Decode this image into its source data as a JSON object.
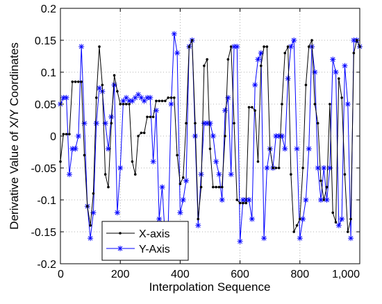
{
  "chart_data": {
    "type": "line",
    "xlabel": "Interpolation Sequence",
    "ylabel": "Derivative Value of X/Y Coordinates",
    "xlim": [
      0,
      1000
    ],
    "ylim": [
      -0.2,
      0.2
    ],
    "x_ticks": [
      0,
      200,
      400,
      600,
      800,
      1000
    ],
    "x_tick_labels": [
      "0",
      "200",
      "400",
      "600",
      "800",
      "1,000"
    ],
    "y_ticks": [
      -0.2,
      -0.15,
      -0.1,
      -0.05,
      0,
      0.05,
      0.1,
      0.15,
      0.2
    ],
    "y_tick_labels": [
      "-0.2",
      "-0.15",
      "-0.1",
      "-0.05",
      "0",
      "0.05",
      "0.1",
      "0.15",
      "0.2"
    ],
    "grid": true,
    "legend_position": "bottom-left",
    "series": [
      {
        "name": "X-axis",
        "color": "#000000",
        "marker": "dot",
        "x": [
          0,
          10,
          20,
          30,
          40,
          50,
          60,
          70,
          80,
          90,
          100,
          110,
          120,
          130,
          140,
          150,
          160,
          170,
          180,
          190,
          200,
          210,
          220,
          230,
          240,
          250,
          260,
          270,
          280,
          290,
          300,
          310,
          320,
          330,
          340,
          350,
          360,
          370,
          380,
          390,
          400,
          410,
          420,
          430,
          440,
          450,
          460,
          470,
          480,
          490,
          500,
          510,
          520,
          530,
          540,
          550,
          560,
          570,
          580,
          590,
          600,
          610,
          620,
          630,
          640,
          650,
          660,
          670,
          680,
          690,
          700,
          710,
          720,
          730,
          740,
          750,
          760,
          770,
          780,
          790,
          800,
          810,
          820,
          830,
          840,
          850,
          860,
          870,
          880,
          890,
          900,
          910,
          920,
          930,
          940,
          950,
          960,
          970,
          980,
          990,
          1000
        ],
        "y": [
          -0.04,
          0.003,
          0.003,
          0.003,
          0.085,
          0.085,
          0.085,
          0.085,
          -0.03,
          -0.11,
          -0.14,
          -0.09,
          0.06,
          0.14,
          0.08,
          -0.06,
          -0.08,
          0.02,
          0.095,
          0.07,
          0.05,
          0.05,
          0.05,
          0.05,
          -0.04,
          -0.06,
          0.0,
          0.005,
          0.005,
          0.03,
          0.03,
          0.03,
          0.055,
          0.055,
          0.055,
          0.055,
          0.06,
          0.06,
          0.06,
          -0.03,
          -0.075,
          -0.065,
          0.02,
          0.14,
          0.15,
          0.02,
          -0.13,
          -0.08,
          0.11,
          0.12,
          -0.02,
          -0.08,
          -0.08,
          -0.08,
          -0.08,
          0.0,
          0.12,
          0.14,
          0.02,
          -0.1,
          -0.105,
          -0.105,
          -0.105,
          0.045,
          0.045,
          0.04,
          -0.04,
          0.11,
          0.14,
          0.14,
          -0.02,
          -0.05,
          -0.05,
          -0.05,
          0.05,
          0.13,
          0.14,
          -0.06,
          -0.15,
          -0.14,
          -0.13,
          -0.05,
          0.08,
          0.14,
          0.15,
          0.05,
          0.02,
          -0.07,
          -0.1,
          -0.08,
          0.05,
          -0.12,
          -0.135,
          0.09,
          0.06,
          -0.06,
          -0.15,
          -0.13,
          0.13,
          0.15,
          0.14
        ]
      },
      {
        "name": "Y-Axis",
        "color": "#0000ff",
        "marker": "star",
        "x": [
          0,
          10,
          20,
          30,
          40,
          50,
          60,
          70,
          80,
          90,
          100,
          110,
          120,
          130,
          140,
          150,
          160,
          170,
          180,
          190,
          200,
          210,
          220,
          230,
          240,
          250,
          260,
          270,
          280,
          290,
          300,
          310,
          320,
          330,
          340,
          350,
          360,
          370,
          380,
          390,
          400,
          410,
          420,
          430,
          440,
          450,
          460,
          470,
          480,
          490,
          500,
          510,
          520,
          530,
          540,
          550,
          560,
          570,
          580,
          590,
          600,
          610,
          620,
          630,
          640,
          650,
          660,
          670,
          680,
          690,
          700,
          710,
          720,
          730,
          740,
          750,
          760,
          770,
          780,
          790,
          800,
          810,
          820,
          830,
          840,
          850,
          860,
          870,
          880,
          890,
          900,
          910,
          920,
          930,
          940,
          950,
          960,
          970,
          980,
          990,
          1000
        ],
        "y": [
          0.05,
          0.06,
          0.06,
          -0.06,
          -0.02,
          -0.02,
          0.0,
          0.14,
          0.02,
          -0.11,
          -0.16,
          -0.12,
          0.02,
          0.075,
          0.07,
          0.02,
          -0.02,
          0.03,
          0.08,
          -0.12,
          -0.05,
          0.055,
          0.06,
          0.055,
          0.055,
          0.06,
          0.065,
          0.06,
          0.055,
          0.06,
          0.06,
          -0.04,
          0.04,
          -0.13,
          -0.08,
          -0.16,
          -0.14,
          0.05,
          0.16,
          0.13,
          -0.12,
          -0.1,
          -0.07,
          0.14,
          0.15,
          0.0,
          -0.14,
          -0.06,
          0.02,
          0.02,
          0.02,
          0.0,
          -0.04,
          -0.06,
          -0.1,
          0.04,
          0.06,
          -0.06,
          0.14,
          0.14,
          -0.165,
          -0.1,
          -0.1,
          -0.1,
          -0.13,
          0.08,
          0.12,
          0.13,
          -0.16,
          -0.05,
          -0.02,
          -0.05,
          0.0,
          0.0,
          0.0,
          -0.02,
          0.09,
          0.14,
          0.15,
          -0.02,
          -0.16,
          -0.13,
          -0.1,
          -0.02,
          0.14,
          0.1,
          -0.05,
          -0.1,
          -0.05,
          -0.1,
          -0.05,
          0.12,
          0.1,
          -0.14,
          -0.13,
          0.11,
          0.05,
          -0.16,
          0.15,
          0.15,
          0.14
        ]
      }
    ]
  }
}
